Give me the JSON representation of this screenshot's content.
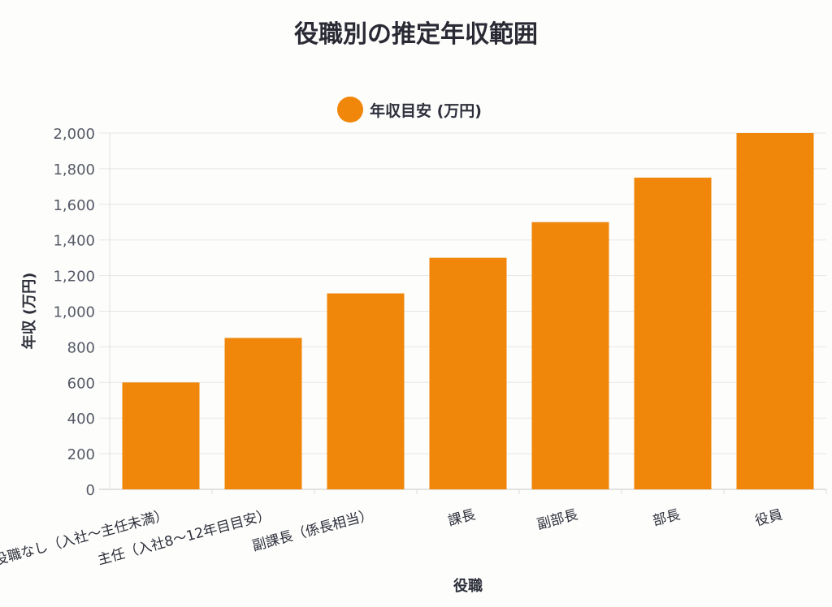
{
  "chart_data": {
    "type": "bar",
    "title": "役職別の推定年収範囲",
    "xlabel": "役職",
    "ylabel": "年収 (万円)",
    "ylim": [
      0,
      2000
    ],
    "yticks": [
      0,
      200,
      400,
      600,
      800,
      1000,
      1200,
      1400,
      1600,
      1800,
      2000
    ],
    "grid": true,
    "legend_position": "top-center",
    "categories": [
      "役職なし（入社〜主任未満）",
      "主任（入社8〜12年目目安）",
      "副課長（係長相当）",
      "課長",
      "副部長",
      "部長",
      "役員"
    ],
    "series": [
      {
        "name": "年収目安 (万円)",
        "color": "#f0860a",
        "values": [
          600,
          850,
          1100,
          1300,
          1500,
          1750,
          2000
        ]
      }
    ]
  }
}
